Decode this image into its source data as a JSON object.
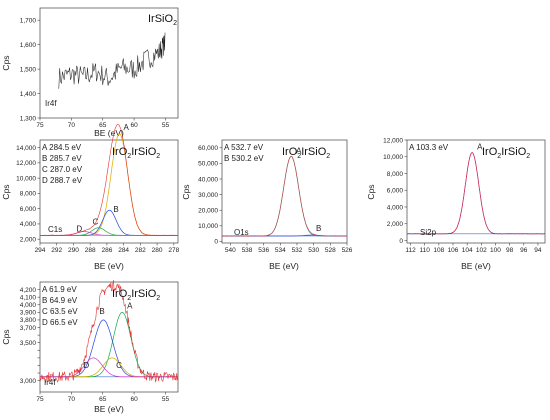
{
  "chart_data": [
    {
      "id": "irsio2-ir4f",
      "type": "line",
      "title": "IrSiO",
      "title_sub": "2",
      "ylabel": "Cps",
      "xlabel": "BE (eV)",
      "region": "Ir4f",
      "xlim": [
        75,
        53
      ],
      "ylim": [
        1300,
        1750
      ],
      "xticks": [
        75,
        70,
        65,
        60,
        55
      ],
      "yticks": [
        1300,
        1400,
        1500,
        1600,
        1700
      ],
      "ytick_labels": [
        "1,300",
        "1,400",
        "1,500",
        "1,600",
        "1,700"
      ],
      "series": [
        {
          "color": "#222222",
          "x": [
            72,
            70,
            68,
            66,
            64,
            62,
            60,
            58,
            56,
            55
          ],
          "y": [
            1465,
            1480,
            1470,
            1490,
            1460,
            1505,
            1500,
            1540,
            1570,
            1610
          ]
        }
      ]
    },
    {
      "id": "iro2irsio2-c1s",
      "type": "line",
      "title": "IrO",
      "title_sub1": "2",
      "title_mid": "IrSiO",
      "title_sub2": "2",
      "ylabel": "Cps",
      "xlabel": "BE (eV)",
      "region": "C1s",
      "xlim": [
        294,
        277.5
      ],
      "ylim": [
        1500,
        15000
      ],
      "xticks": [
        294,
        292,
        290,
        288,
        286,
        284,
        282,
        280,
        278
      ],
      "yticks": [
        2000,
        4000,
        6000,
        8000,
        10000,
        12000,
        14000
      ],
      "ytick_labels": [
        "2,000",
        "4,000",
        "6,000",
        "8,000",
        "10,000",
        "12,000",
        "14,000"
      ],
      "legend": [
        "A 284.5 eV",
        "B 285.7 eV",
        "C 287.0 eV",
        "D 288.7 eV"
      ],
      "peaks": [
        {
          "label": "A",
          "center": 284.5,
          "height": 13300,
          "width": 1.0,
          "color": "#e0b000"
        },
        {
          "label": "B",
          "center": 285.7,
          "height": 3300,
          "width": 0.8,
          "color": "#3050e0"
        },
        {
          "label": "C",
          "center": 287.0,
          "height": 1000,
          "width": 0.8,
          "color": "#20b050"
        },
        {
          "label": "D",
          "center": 288.7,
          "height": 500,
          "width": 0.9,
          "color": "#d040d0"
        }
      ],
      "background": 2500
    },
    {
      "id": "iro2irsio2-o1s",
      "type": "line",
      "title": "IrO",
      "title_sub1": "2",
      "title_mid": "IrSiO",
      "title_sub2": "2",
      "ylabel": "Cps",
      "xlabel": "BE (eV)",
      "region": "O1s",
      "xlim": [
        541,
        526
      ],
      "ylim": [
        -1000,
        65000
      ],
      "xticks": [
        540,
        538,
        536,
        534,
        532,
        530,
        528,
        526
      ],
      "yticks": [
        0,
        10000,
        20000,
        30000,
        40000,
        50000,
        60000
      ],
      "ytick_labels": [
        "0",
        "10,000",
        "20,000",
        "30,000",
        "40,000",
        "50,000",
        "60,000"
      ],
      "legend": [
        "A 532.7 eV",
        "B 530.2 eV"
      ],
      "peaks": [
        {
          "label": "A",
          "center": 532.7,
          "height": 51000,
          "width": 0.9,
          "color": "#20c0c0"
        },
        {
          "label": "B",
          "center": 530.2,
          "height": 600,
          "width": 0.8,
          "color": "#3050e0"
        }
      ],
      "background": 3500
    },
    {
      "id": "iro2irsio2-si2p",
      "type": "line",
      "title": "IrO",
      "title_sub1": "2",
      "title_mid": "IrSiO",
      "title_sub2": "2",
      "ylabel": "Cps",
      "xlabel": "BE (eV)",
      "region": "Si2p",
      "xlim": [
        112.5,
        93
      ],
      "ylim": [
        -300,
        12000
      ],
      "xticks": [
        112,
        110,
        108,
        106,
        104,
        102,
        100,
        98,
        96,
        94
      ],
      "yticks": [
        0,
        2000,
        4000,
        6000,
        8000,
        10000,
        12000
      ],
      "ytick_labels": [
        "0",
        "2,000",
        "4,000",
        "6,000",
        "8,000",
        "10,000",
        "12,000"
      ],
      "legend": [
        "A 103.3 eV"
      ],
      "peaks": [
        {
          "label": "A",
          "center": 103.3,
          "height": 9700,
          "width": 0.95,
          "color": "#8030d0"
        }
      ],
      "background": 800
    },
    {
      "id": "iro2irsio2-ir4f",
      "type": "line",
      "title": "IrO",
      "title_sub1": "2",
      "title_mid": "IrSiO",
      "title_sub2": "2",
      "ylabel": "Cps",
      "xlabel": "BE (eV)",
      "region": "Ir4f",
      "xlim": [
        75,
        53
      ],
      "ylim": [
        2850,
        4300
      ],
      "xticks": [
        75,
        70,
        65,
        60,
        55
      ],
      "yticks": [
        3000,
        3100,
        3200,
        3300,
        3400,
        3500,
        3600,
        3700,
        3800,
        3900,
        4000,
        4100,
        4200
      ],
      "ytick_labels": [
        "3,000",
        "",
        "",
        "",
        "",
        "3,500",
        "",
        "3,700",
        "3,800",
        "3,900",
        "4,000",
        "4,100",
        "4,200"
      ],
      "legend": [
        "A 61.9 eV",
        "B 64.9 eV",
        "C 63.5 eV",
        "D 66.5 eV"
      ],
      "peaks": [
        {
          "label": "A",
          "center": 61.9,
          "height": 850,
          "width": 1.4,
          "color": "#20b050"
        },
        {
          "label": "B",
          "center": 64.9,
          "height": 750,
          "width": 1.5,
          "color": "#3050e0"
        },
        {
          "label": "C",
          "center": 63.5,
          "height": 250,
          "width": 1.4,
          "color": "#d0b000"
        },
        {
          "label": "D",
          "center": 66.5,
          "height": 250,
          "width": 1.4,
          "color": "#d040d0"
        }
      ],
      "background": 3050
    }
  ]
}
